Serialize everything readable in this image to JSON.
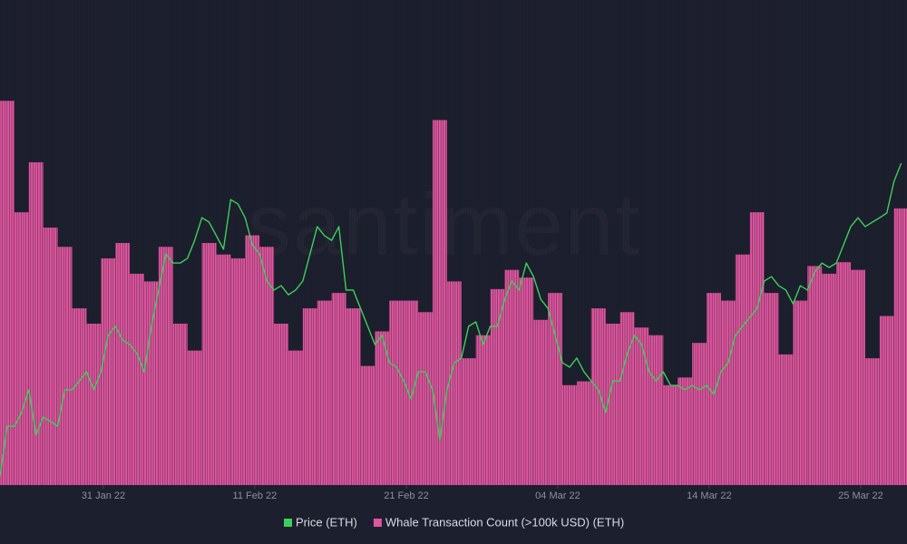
{
  "chart_data": {
    "type": "bar_line",
    "watermark": "santiment",
    "xlim": [
      0,
      62.9
    ],
    "xticks": [
      {
        "value": 7.17,
        "label": "31 Jan 22"
      },
      {
        "value": 17.67,
        "label": "11 Feb 22"
      },
      {
        "value": 28.18,
        "label": "21 Feb 22"
      },
      {
        "value": 38.68,
        "label": "04 Mar 22"
      },
      {
        "value": 49.18,
        "label": "14 Mar 22"
      },
      {
        "value": 59.69,
        "label": "25 Mar 22"
      }
    ],
    "ylim": [
      0,
      105
    ],
    "y2lim": [
      2150,
      3700
    ],
    "series": [
      {
        "name": "Whale Transaction Count (>100k USD) (ETH)",
        "type": "bar",
        "color": "#e0559e",
        "x": [
          0,
          1,
          2,
          3,
          4,
          5,
          6,
          7,
          8,
          9,
          10,
          11,
          12,
          13,
          14,
          15,
          16,
          17,
          18,
          19,
          20,
          21,
          22,
          23,
          24,
          25,
          26,
          27,
          28,
          29,
          30,
          31,
          32,
          33,
          34,
          35,
          36,
          37,
          38,
          39,
          40,
          41,
          42,
          43,
          44,
          45,
          46,
          47,
          48,
          49,
          50,
          51,
          52,
          53,
          54,
          55,
          56,
          57,
          58,
          59,
          60,
          61,
          62
        ],
        "values": [
          100,
          71,
          84,
          67,
          62,
          46,
          42,
          59,
          63,
          55,
          53,
          62,
          42,
          35,
          63,
          60,
          59,
          65,
          62,
          42,
          35,
          46,
          48,
          50,
          46,
          31,
          40,
          48,
          48,
          45,
          95,
          53,
          33,
          39,
          51,
          56,
          54,
          43,
          50,
          26,
          27,
          46,
          42,
          45,
          41,
          39,
          26,
          28,
          37,
          50,
          48,
          60,
          71,
          50,
          34,
          48,
          57,
          55,
          58,
          56,
          33,
          44,
          72
        ]
      },
      {
        "name": "Price (ETH)",
        "type": "line",
        "color": "#3ecf5a",
        "axis": "y2",
        "x": [
          0,
          0.5,
          1,
          1.5,
          2,
          2.5,
          3,
          3.5,
          4,
          4.5,
          5,
          5.5,
          6,
          6.5,
          7,
          7.5,
          8,
          8.5,
          9,
          9.5,
          10,
          10.5,
          11,
          11.5,
          12,
          12.5,
          13,
          13.5,
          14,
          14.5,
          15,
          15.5,
          16,
          16.5,
          17,
          17.5,
          18,
          18.5,
          19,
          19.5,
          20,
          20.5,
          21,
          21.5,
          22,
          22.5,
          23,
          23.5,
          24,
          24.5,
          25,
          25.5,
          26,
          26.5,
          27,
          27.5,
          28,
          28.5,
          29,
          29.5,
          30,
          30.5,
          31,
          31.5,
          32,
          32.5,
          33,
          33.5,
          34,
          34.5,
          35,
          35.5,
          36,
          36.5,
          37,
          37.5,
          38,
          38.5,
          39,
          39.5,
          40,
          40.5,
          41,
          41.5,
          42,
          42.5,
          43,
          43.5,
          44,
          44.5,
          45,
          45.5,
          46,
          46.5,
          47,
          47.5,
          48,
          48.5,
          49,
          49.5,
          50,
          50.5,
          51,
          51.5,
          52,
          52.5,
          53,
          53.5,
          54,
          54.5,
          55,
          55.5,
          56,
          56.5,
          57,
          57.5,
          58,
          58.5,
          59,
          59.5,
          60,
          60.5,
          61,
          61.5,
          62,
          62.5
        ],
        "values": [
          2185,
          2376,
          2376,
          2429,
          2516,
          2342,
          2411,
          2394,
          2376,
          2516,
          2516,
          2550,
          2585,
          2516,
          2585,
          2725,
          2760,
          2707,
          2690,
          2655,
          2585,
          2760,
          2899,
          3038,
          3003,
          3003,
          3021,
          3090,
          3177,
          3160,
          3108,
          3056,
          3247,
          3230,
          3177,
          3073,
          3038,
          2934,
          2899,
          2916,
          2881,
          2899,
          2934,
          3038,
          3143,
          3108,
          3090,
          3143,
          2899,
          2899,
          2829,
          2760,
          2690,
          2725,
          2620,
          2603,
          2550,
          2481,
          2585,
          2585,
          2516,
          2324,
          2516,
          2620,
          2638,
          2760,
          2777,
          2690,
          2760,
          2760,
          2864,
          2934,
          2899,
          3003,
          2951,
          2864,
          2829,
          2725,
          2620,
          2603,
          2638,
          2585,
          2550,
          2516,
          2429,
          2550,
          2550,
          2655,
          2725,
          2690,
          2585,
          2550,
          2585,
          2533,
          2533,
          2516,
          2533,
          2516,
          2533,
          2498,
          2585,
          2620,
          2725,
          2760,
          2794,
          2829,
          2934,
          2951,
          2916,
          2899,
          2846,
          2916,
          2899,
          2969,
          3003,
          2986,
          3003,
          3073,
          3143,
          3177,
          3143,
          3160,
          3177,
          3195,
          3317,
          3386
        ]
      }
    ]
  }
}
